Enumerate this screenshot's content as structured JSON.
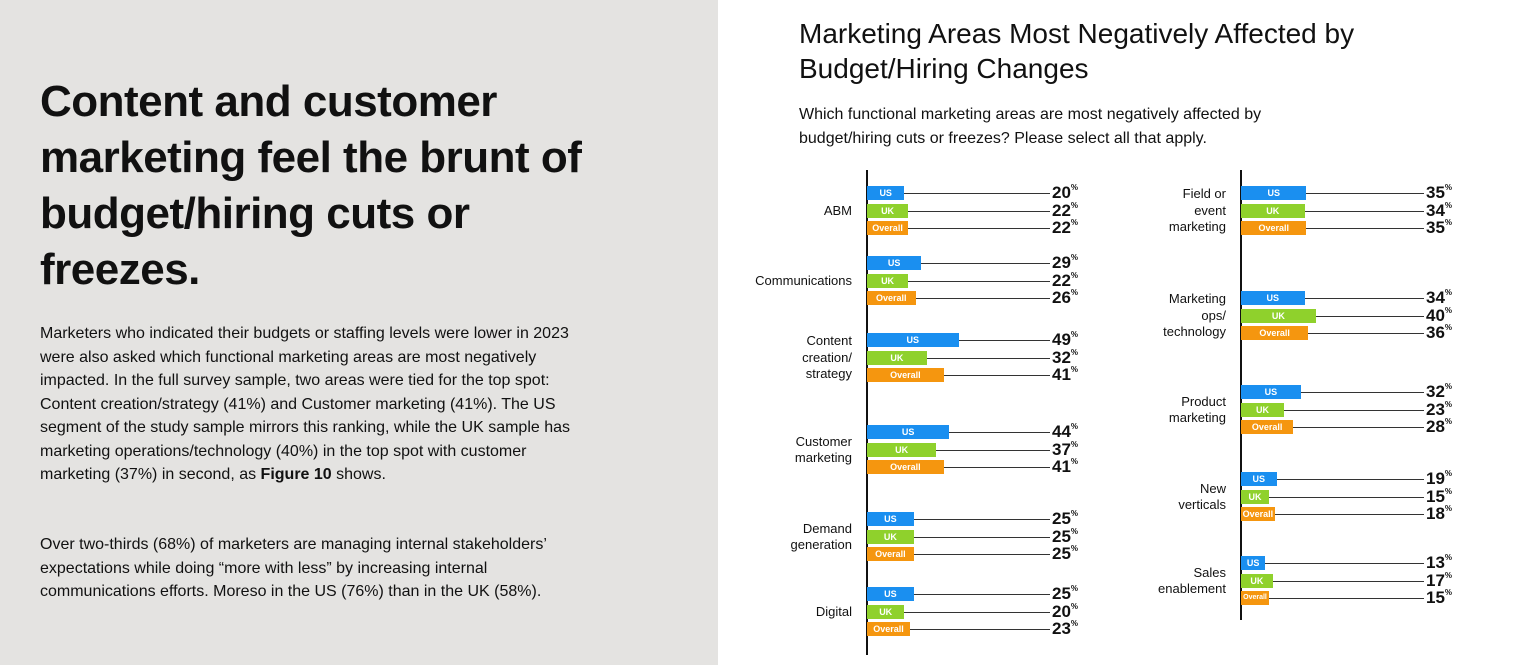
{
  "article": {
    "headline": "Content and customer marketing feel the brunt of budget/hiring cuts or freezes.",
    "paragraph1_a": "Marketers who indicated their budgets or staffing levels were lower in 2023 were also asked which functional marketing areas are most negatively impacted.  In the full survey sample, two areas were tied for the top spot: Content creation/strategy (41%) and Customer marketing (41%). The US segment of the study sample mirrors this ranking, while the UK sample has marketing operations/technology (40%) in the top spot with customer marketing (37%) in second, as ",
    "paragraph1_bold": "Figure 10",
    "paragraph1_b": " shows.",
    "paragraph2": "Over two-thirds (68%) of marketers are managing internal stakeholders’ expectations while doing “more with less” by increasing internal communications efforts. Moreso in the US (76%) than in the UK (58%)."
  },
  "chart_data": {
    "type": "bar",
    "orientation": "horizontal",
    "title": "Marketing Areas Most Negatively Affected by Budget/Hiring Changes",
    "subtitle": "Which functional marketing areas are most negatively affected by budget/hiring cuts or freezes? Please select all that apply.",
    "unit": "%",
    "series_names": [
      "US",
      "UK",
      "Overall"
    ],
    "colors": {
      "US": "#1a8ff0",
      "UK": "#8fd12c",
      "Overall": "#f5960f"
    },
    "columns": [
      [
        {
          "category": "ABM",
          "values": [
            20,
            22,
            22
          ]
        },
        {
          "category": "Communications",
          "values": [
            29,
            22,
            26
          ]
        },
        {
          "category": "Content\ncreation/\nstrategy",
          "values": [
            49,
            32,
            41
          ]
        },
        {
          "category": "Customer\nmarketing",
          "values": [
            44,
            37,
            41
          ]
        },
        {
          "category": "Demand\ngeneration",
          "values": [
            25,
            25,
            25
          ]
        },
        {
          "category": "Digital",
          "values": [
            25,
            20,
            23
          ]
        }
      ],
      [
        {
          "category": "Field or\nevent\nmarketing",
          "values": [
            35,
            34,
            35
          ]
        },
        {
          "category": "Marketing\nops/\ntechnology",
          "values": [
            34,
            40,
            36
          ]
        },
        {
          "category": "Product\nmarketing",
          "values": [
            32,
            23,
            28
          ]
        },
        {
          "category": "New\nverticals",
          "values": [
            19,
            15,
            18
          ]
        },
        {
          "category": "Sales\nenablement",
          "values": [
            13,
            17,
            15
          ]
        }
      ]
    ]
  }
}
